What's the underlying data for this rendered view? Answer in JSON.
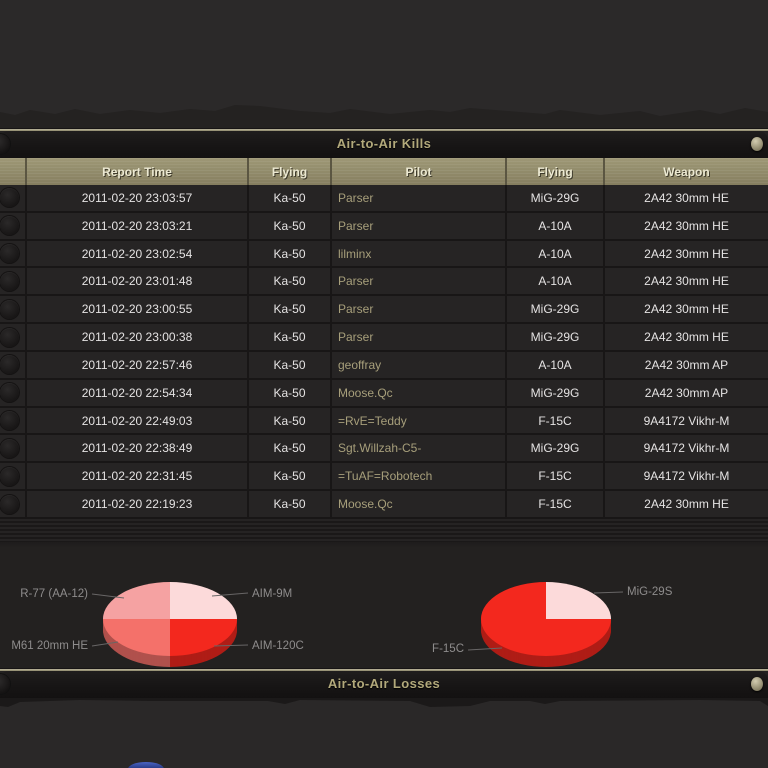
{
  "kills_panel": {
    "title": "Air-to-Air Kills",
    "columns": [
      "",
      "Report Time",
      "Flying",
      "Pilot",
      "Flying",
      "Weapon"
    ],
    "rows": [
      {
        "time": "2011-02-20 23:03:57",
        "flying": "Ka-50",
        "pilot": "Parser",
        "target": "MiG-29G",
        "weapon": "2A42 30mm HE"
      },
      {
        "time": "2011-02-20 23:03:21",
        "flying": "Ka-50",
        "pilot": "Parser",
        "target": "A-10A",
        "weapon": "2A42 30mm HE"
      },
      {
        "time": "2011-02-20 23:02:54",
        "flying": "Ka-50",
        "pilot": "lilminx",
        "target": "A-10A",
        "weapon": "2A42 30mm HE"
      },
      {
        "time": "2011-02-20 23:01:48",
        "flying": "Ka-50",
        "pilot": "Parser",
        "target": "A-10A",
        "weapon": "2A42 30mm HE"
      },
      {
        "time": "2011-02-20 23:00:55",
        "flying": "Ka-50",
        "pilot": "Parser",
        "target": "MiG-29G",
        "weapon": "2A42 30mm HE"
      },
      {
        "time": "2011-02-20 23:00:38",
        "flying": "Ka-50",
        "pilot": "Parser",
        "target": "MiG-29G",
        "weapon": "2A42 30mm HE"
      },
      {
        "time": "2011-02-20 22:57:46",
        "flying": "Ka-50",
        "pilot": "geoffray",
        "target": "A-10A",
        "weapon": "2A42 30mm AP"
      },
      {
        "time": "2011-02-20 22:54:34",
        "flying": "Ka-50",
        "pilot": "Moose.Qc",
        "target": "MiG-29G",
        "weapon": "2A42 30mm AP"
      },
      {
        "time": "2011-02-20 22:49:03",
        "flying": "Ka-50",
        "pilot": "=RvE=Teddy",
        "target": "F-15C",
        "weapon": "9A4172 Vikhr-M"
      },
      {
        "time": "2011-02-20 22:38:49",
        "flying": "Ka-50",
        "pilot": "Sgt.Willzah-C5-",
        "target": "MiG-29G",
        "weapon": "9A4172 Vikhr-M"
      },
      {
        "time": "2011-02-20 22:31:45",
        "flying": "Ka-50",
        "pilot": "=TuAF=Robotech",
        "target": "F-15C",
        "weapon": "9A4172 Vikhr-M"
      },
      {
        "time": "2011-02-20 22:19:23",
        "flying": "Ka-50",
        "pilot": "Moose.Qc",
        "target": "F-15C",
        "weapon": "2A42 30mm HE"
      }
    ]
  },
  "losses_panel": {
    "title": "Air-to-Air Losses"
  },
  "chart_data": [
    {
      "type": "pie",
      "style": "3d",
      "labels": [
        "AIM-9M",
        "AIM-120C",
        "M61 20mm HE",
        "R-77 (AA-12)"
      ],
      "values": [
        25,
        25,
        25,
        25
      ],
      "colors": [
        "#fcdada",
        "#f3281e",
        "#f4716a",
        "#f5a2a2"
      ],
      "start_angle_deg": 0,
      "clockwise": true,
      "legend_position": "callout-lines"
    },
    {
      "type": "pie",
      "style": "3d",
      "labels": [
        "MiG-29S",
        "F-15C"
      ],
      "values": [
        25,
        75
      ],
      "colors": [
        "#fcdada",
        "#f3281e"
      ],
      "start_angle_deg": 0,
      "clockwise": true,
      "legend_position": "callout-lines"
    }
  ],
  "colors": {
    "accent_khaki": "#b2a97b",
    "header_background": "#948e6c",
    "row_background": "#262424",
    "row_text": "#e5e3e3",
    "pilot_text": "#a79f7b",
    "chart_label_text": "#8e8c8c",
    "losses_pie_blue": "#3c55b8"
  }
}
